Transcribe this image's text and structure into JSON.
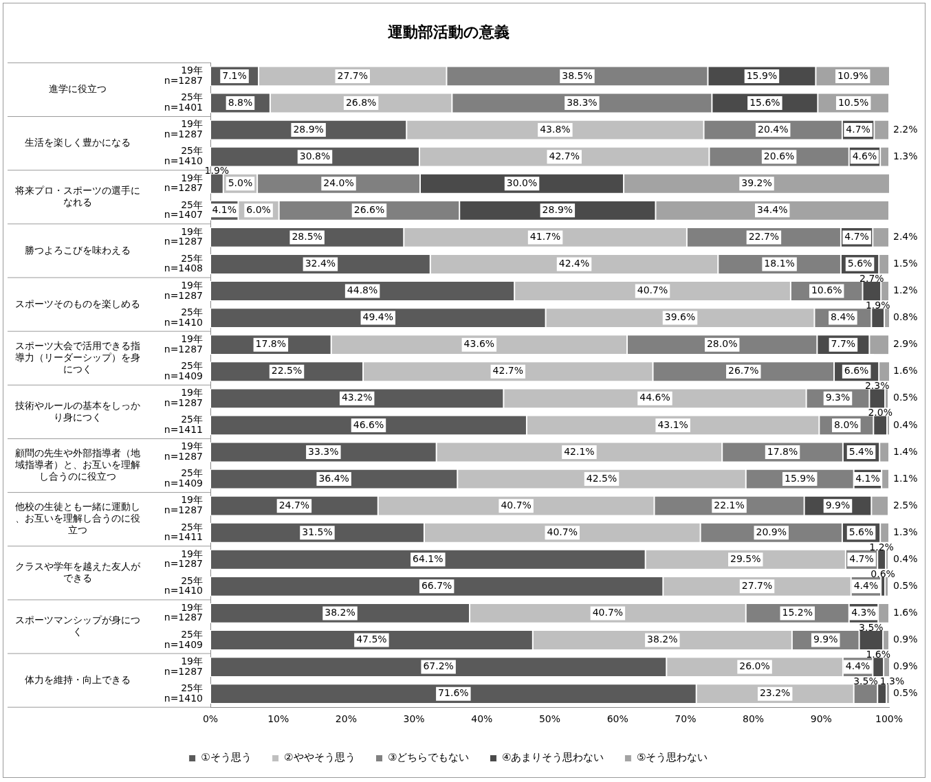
{
  "chart_data": {
    "type": "bar",
    "title": "運動部活動の意義",
    "orientation": "horizontal",
    "stacked": true,
    "legend": "bottom",
    "categories": [
      "19年\nn=1287",
      "25年\nn=1401",
      "19年\nn=1287",
      "25年\nn=1410",
      "19年\nn=1287",
      "25年\nn=1407",
      "19年\nn=1287",
      "25年\nn=1408",
      "19年\nn=1287",
      "25年\nn=1410",
      "19年\nn=1287",
      "25年\nn=1409",
      "19年\nn=1287",
      "25年\nn=1411",
      "19年\nn=1287",
      "25年\nn=1409",
      "19年\nn=1287",
      "25年\nn=1411",
      "19年\nn=1287",
      "25年\nn=1410",
      "19年\nn=1287",
      "25年\nn=1409",
      "19年\nn=1287",
      "25年\nn=1410"
    ],
    "annotations": [
      "進学に役立つ",
      "生活を楽しく豊かになる",
      "将来プロ・スポーツの選手になれる",
      "勝つよろこびを味わえる",
      "スポーツそのものを楽しめる",
      "スポーツ大会で活用できる指導力（リーダーシップ）を身につく",
      "技術やルールの基本をしっかり身につく",
      "顧問の先生や外部指導者（地域指導者）と、お互いを理解し合うのに役立つ",
      "他校の生徒とも一緒に運動し、お互いを理解し合うのに役立つ",
      "クラスや学年を越えた友人ができる",
      "スポーツマンシップが身につく",
      "体力を維持・向上できる"
    ],
    "xlim": [
      0,
      100
    ],
    "xticks": [
      {
        "value": 0,
        "label": "0%"
      },
      {
        "value": 10,
        "label": "10%"
      },
      {
        "value": 20,
        "label": "20%"
      },
      {
        "value": 30,
        "label": "30%"
      },
      {
        "value": 40,
        "label": "40%"
      },
      {
        "value": 50,
        "label": "50%"
      },
      {
        "value": 60,
        "label": "60%"
      },
      {
        "value": 70,
        "label": "70%"
      },
      {
        "value": 80,
        "label": "80%"
      },
      {
        "value": 90,
        "label": "90%"
      },
      {
        "value": 100,
        "label": "100%"
      }
    ],
    "series": [
      {
        "name": "①そう思う",
        "color": "#5a5a5a",
        "values": [
          7.1,
          8.8,
          28.9,
          30.8,
          1.9,
          4.1,
          28.5,
          32.4,
          44.8,
          49.4,
          17.8,
          22.5,
          43.2,
          46.6,
          33.3,
          36.4,
          24.7,
          31.5,
          64.1,
          66.7,
          38.2,
          47.5,
          67.2,
          71.6
        ],
        "value_labels": [
          "7.1%",
          "8.8%",
          "28.9%",
          "30.8%",
          "1.9%",
          "4.1%",
          "28.5%",
          "32.4%",
          "44.8%",
          "49.4%",
          "17.8%",
          "22.5%",
          "43.2%",
          "46.6%",
          "33.3%",
          "36.4%",
          "24.7%",
          "31.5%",
          "64.1%",
          "66.7%",
          "38.2%",
          "47.5%",
          "67.2%",
          "71.6%"
        ]
      },
      {
        "name": "②ややそう思う",
        "color": "#bfbfbf",
        "values": [
          27.7,
          26.8,
          43.8,
          42.7,
          5.0,
          6.0,
          41.7,
          42.4,
          40.7,
          39.6,
          43.6,
          42.7,
          44.6,
          43.1,
          42.1,
          42.5,
          40.7,
          40.7,
          29.5,
          27.7,
          40.7,
          38.2,
          26.0,
          23.2
        ],
        "value_labels": [
          "27.7%",
          "26.8%",
          "43.8%",
          "42.7%",
          "5.0%",
          "6.0%",
          "41.7%",
          "42.4%",
          "40.7%",
          "39.6%",
          "43.6%",
          "42.7%",
          "44.6%",
          "43.1%",
          "42.1%",
          "42.5%",
          "40.7%",
          "40.7%",
          "29.5%",
          "27.7%",
          "40.7%",
          "38.2%",
          "26.0%",
          "23.2%"
        ]
      },
      {
        "name": "③どちらでもない",
        "color": "#808080",
        "values": [
          38.5,
          38.3,
          20.4,
          20.6,
          24.0,
          26.6,
          22.7,
          18.1,
          10.6,
          8.4,
          28.0,
          26.7,
          9.3,
          8.0,
          17.8,
          15.9,
          22.1,
          20.9,
          4.7,
          4.4,
          15.2,
          9.9,
          4.4,
          3.5
        ],
        "value_labels": [
          "38.5%",
          "38.3%",
          "20.4%",
          "20.6%",
          "24.0%",
          "26.6%",
          "22.7%",
          "18.1%",
          "10.6%",
          "8.4%",
          "28.0%",
          "26.7%",
          "9.3%",
          "8.0%",
          "17.8%",
          "15.9%",
          "22.1%",
          "20.9%",
          "4.7%",
          "4.4%",
          "15.2%",
          "9.9%",
          "4.4%",
          "3.5%"
        ]
      },
      {
        "name": "④あまりそう思わない",
        "color": "#4a4a4a",
        "values": [
          15.9,
          15.6,
          4.7,
          4.6,
          30.0,
          28.9,
          4.7,
          5.6,
          2.7,
          1.9,
          7.7,
          6.6,
          2.3,
          2.0,
          5.4,
          4.1,
          9.9,
          5.6,
          1.2,
          0.6,
          4.3,
          3.5,
          1.6,
          1.3
        ],
        "value_labels": [
          "15.9%",
          "15.6%",
          "4.7%",
          "4.6%",
          "30.0%",
          "28.9%",
          "4.7%",
          "5.6%",
          "2.7%",
          "1.9%",
          "7.7%",
          "6.6%",
          "2.3%",
          "2.0%",
          "5.4%",
          "4.1%",
          "9.9%",
          "5.6%",
          "1.2%",
          "0.6%",
          "4.3%",
          "3.5%",
          "1.6%",
          "1.3%"
        ]
      },
      {
        "name": "⑤そう思わない",
        "color": "#a3a3a3",
        "values": [
          10.9,
          10.5,
          2.2,
          1.3,
          39.2,
          34.4,
          2.4,
          1.5,
          1.2,
          0.8,
          2.9,
          1.6,
          0.5,
          0.4,
          1.4,
          1.1,
          2.5,
          1.3,
          0.4,
          0.5,
          1.6,
          0.9,
          0.9,
          0.5
        ],
        "value_labels": [
          "10.9%",
          "10.5%",
          "2.2%",
          "1.3%",
          "39.2%",
          "34.4%",
          "2.4%",
          "1.5%",
          "1.2%",
          "0.8%",
          "2.9%",
          "1.6%",
          "0.5%",
          "0.4%",
          "1.4%",
          "1.1%",
          "2.5%",
          "1.3%",
          "0.4%",
          "0.5%",
          "1.6%",
          "0.9%",
          "0.9%",
          "0.5%"
        ]
      }
    ]
  }
}
